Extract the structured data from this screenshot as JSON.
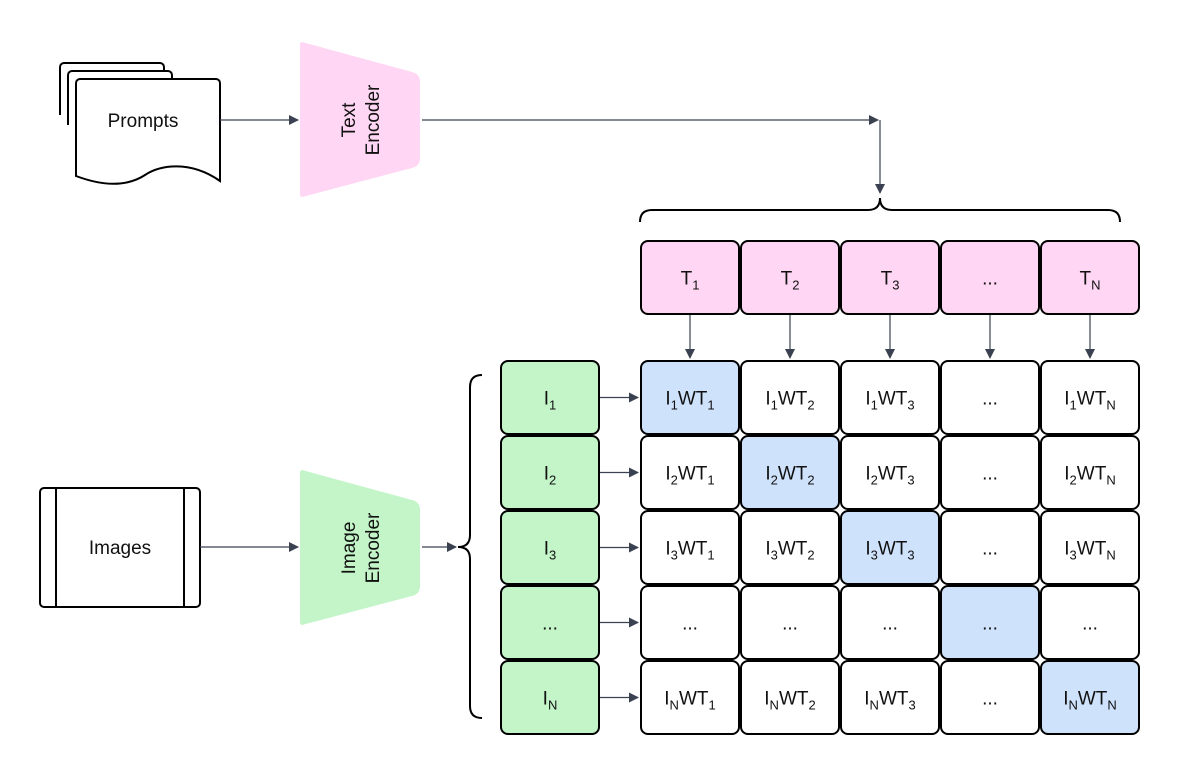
{
  "prompts": {
    "label": "Prompts"
  },
  "images": {
    "label": "Images"
  },
  "text_encoder": {
    "line1": "Text",
    "line2": "Encoder"
  },
  "image_encoder": {
    "line1": "Image",
    "line2": "Encoder"
  },
  "text_tokens": [
    [
      {
        "t": "T"
      },
      {
        "t": "1",
        "sub": true
      }
    ],
    [
      {
        "t": "T"
      },
      {
        "t": "2",
        "sub": true
      }
    ],
    [
      {
        "t": "T"
      },
      {
        "t": "3",
        "sub": true
      }
    ],
    [
      {
        "t": "..."
      }
    ],
    [
      {
        "t": "T"
      },
      {
        "t": "N",
        "sub": true
      }
    ]
  ],
  "image_tokens": [
    [
      {
        "t": "I"
      },
      {
        "t": "1",
        "sub": true
      }
    ],
    [
      {
        "t": "I"
      },
      {
        "t": "2",
        "sub": true
      }
    ],
    [
      {
        "t": "I"
      },
      {
        "t": "3",
        "sub": true
      }
    ],
    [
      {
        "t": "..."
      }
    ],
    [
      {
        "t": "I"
      },
      {
        "t": "N",
        "sub": true
      }
    ]
  ],
  "matrix": [
    [
      [
        {
          "t": "I"
        },
        {
          "t": "1",
          "sub": true
        },
        {
          "t": "WT"
        },
        {
          "t": "1",
          "sub": true
        }
      ],
      [
        {
          "t": "I"
        },
        {
          "t": "1",
          "sub": true
        },
        {
          "t": "WT"
        },
        {
          "t": "2",
          "sub": true
        }
      ],
      [
        {
          "t": "I"
        },
        {
          "t": "1",
          "sub": true
        },
        {
          "t": "WT"
        },
        {
          "t": "3",
          "sub": true
        }
      ],
      [
        {
          "t": "..."
        }
      ],
      [
        {
          "t": "I"
        },
        {
          "t": "1",
          "sub": true
        },
        {
          "t": "WT"
        },
        {
          "t": "N",
          "sub": true
        }
      ]
    ],
    [
      [
        {
          "t": "I"
        },
        {
          "t": "2",
          "sub": true
        },
        {
          "t": "WT"
        },
        {
          "t": "1",
          "sub": true
        }
      ],
      [
        {
          "t": "I"
        },
        {
          "t": "2",
          "sub": true
        },
        {
          "t": "WT"
        },
        {
          "t": "2",
          "sub": true
        }
      ],
      [
        {
          "t": "I"
        },
        {
          "t": "2",
          "sub": true
        },
        {
          "t": "WT"
        },
        {
          "t": "3",
          "sub": true
        }
      ],
      [
        {
          "t": "..."
        }
      ],
      [
        {
          "t": "I"
        },
        {
          "t": "2",
          "sub": true
        },
        {
          "t": "WT"
        },
        {
          "t": "N",
          "sub": true
        }
      ]
    ],
    [
      [
        {
          "t": "I"
        },
        {
          "t": "3",
          "sub": true
        },
        {
          "t": "WT"
        },
        {
          "t": "1",
          "sub": true
        }
      ],
      [
        {
          "t": "I"
        },
        {
          "t": "3",
          "sub": true
        },
        {
          "t": "WT"
        },
        {
          "t": "2",
          "sub": true
        }
      ],
      [
        {
          "t": "I"
        },
        {
          "t": "3",
          "sub": true
        },
        {
          "t": "WT"
        },
        {
          "t": "3",
          "sub": true
        }
      ],
      [
        {
          "t": "..."
        }
      ],
      [
        {
          "t": "I"
        },
        {
          "t": "3",
          "sub": true
        },
        {
          "t": "WT"
        },
        {
          "t": "N",
          "sub": true
        }
      ]
    ],
    [
      [
        {
          "t": "..."
        }
      ],
      [
        {
          "t": "..."
        }
      ],
      [
        {
          "t": "..."
        }
      ],
      [
        {
          "t": "..."
        }
      ],
      [
        {
          "t": "..."
        }
      ]
    ],
    [
      [
        {
          "t": "I"
        },
        {
          "t": "N",
          "sub": true
        },
        {
          "t": "WT"
        },
        {
          "t": "1",
          "sub": true
        }
      ],
      [
        {
          "t": "I"
        },
        {
          "t": "N",
          "sub": true
        },
        {
          "t": "WT"
        },
        {
          "t": "2",
          "sub": true
        }
      ],
      [
        {
          "t": "I"
        },
        {
          "t": "N",
          "sub": true
        },
        {
          "t": "WT"
        },
        {
          "t": "3",
          "sub": true
        }
      ],
      [
        {
          "t": "..."
        }
      ],
      [
        {
          "t": "I"
        },
        {
          "t": "N",
          "sub": true
        },
        {
          "t": "WT"
        },
        {
          "t": "N",
          "sub": true
        }
      ]
    ]
  ],
  "colors": {
    "text": "#ffd6f3",
    "image": "#c3f5c8",
    "diagonal": "#cfe2fc",
    "cell": "#ffffff",
    "arrow": "#3a4150"
  }
}
